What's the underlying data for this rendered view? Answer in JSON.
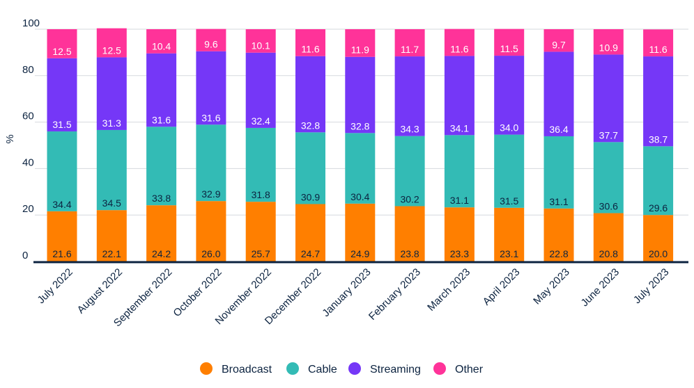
{
  "chart_data": {
    "type": "bar",
    "stacked": true,
    "ylabel": "%",
    "ylim": [
      0,
      100
    ],
    "yticks": [
      0,
      20,
      40,
      60,
      80,
      100
    ],
    "grid": "horizontal",
    "legend_position": "bottom",
    "categories": [
      "July 2022",
      "August 2022",
      "September 2022",
      "October 2022",
      "November 2022",
      "December 2022",
      "January 2023",
      "February 2023",
      "March 2023",
      "April 2023",
      "May 2023",
      "June 2023",
      "July 2023"
    ],
    "series": [
      {
        "name": "Broadcast",
        "color": "#ff7f00",
        "label_color": "#0c2340",
        "values": [
          21.6,
          22.1,
          24.2,
          26.0,
          25.7,
          24.7,
          24.9,
          23.8,
          23.3,
          23.1,
          22.8,
          20.8,
          20.0
        ],
        "labels": [
          "21.6",
          "22.1",
          "24.2",
          "26.0",
          "25.7",
          "24.7",
          "24.9",
          "23.8",
          "23.3",
          "23.1",
          "22.8",
          "20.8",
          "20.0"
        ]
      },
      {
        "name": "Cable",
        "color": "#33bbb5",
        "label_color": "#0c2340",
        "values": [
          34.4,
          34.5,
          33.8,
          32.9,
          31.8,
          30.9,
          30.4,
          30.2,
          31.1,
          31.5,
          31.1,
          30.6,
          29.6
        ],
        "labels": [
          "34.4",
          "34.5",
          "33.8",
          "32.9",
          "31.8",
          "30.9",
          "30.4",
          "30.2",
          "31.1",
          "31.5",
          "31.1",
          "30.6",
          "29.6"
        ]
      },
      {
        "name": "Streaming",
        "color": "#7537f7",
        "label_color": "#ffffff",
        "values": [
          31.5,
          31.3,
          31.6,
          31.6,
          32.4,
          32.8,
          32.8,
          34.3,
          34.1,
          34.0,
          36.4,
          37.7,
          38.7
        ],
        "labels": [
          "31.5",
          "31.3",
          "31.6",
          "31.6",
          "32.4",
          "32.8",
          "32.8",
          "34.3",
          "34.1",
          "34.0",
          "36.4",
          "37.7",
          "38.7"
        ]
      },
      {
        "name": "Other",
        "color": "#ff3399",
        "label_color": "#ffffff",
        "values": [
          12.5,
          12.5,
          10.4,
          9.6,
          10.1,
          11.6,
          11.9,
          11.7,
          11.6,
          11.5,
          9.7,
          10.9,
          11.6
        ],
        "labels": [
          "12.5",
          "12.5",
          "10.4",
          "9.6",
          "10.1",
          "11.6",
          "11.9",
          "11.7",
          "11.6",
          "11.5",
          "9.7",
          "10.9",
          "11.6"
        ]
      }
    ]
  }
}
